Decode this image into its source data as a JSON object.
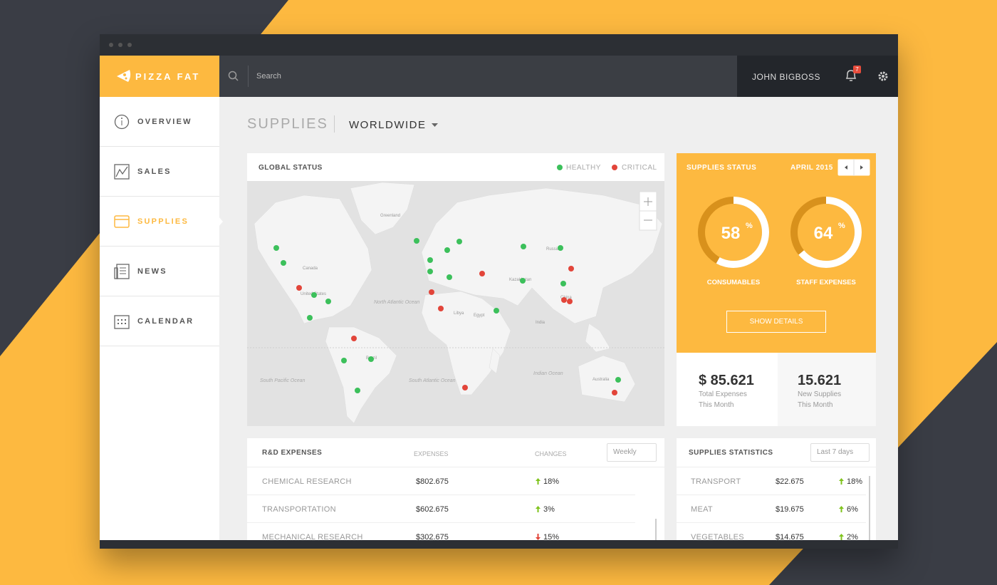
{
  "brand": "PIZZA FAT",
  "search_placeholder": "Search",
  "user": "JOHN BIGBOSS",
  "notifications": 7,
  "nav": [
    "OVERVIEW",
    "SALES",
    "SUPPLIES",
    "NEWS",
    "CALENDAR"
  ],
  "page": {
    "title": "SUPPLIES",
    "region": "WORLDWIDE"
  },
  "global_status": {
    "title": "GLOBAL STATUS",
    "legend": [
      "HEALTHY",
      "CRITICAL"
    ],
    "map_labels": [
      "Greenland",
      "Canada",
      "United States",
      "North Atlantic Ocean",
      "South Pacific Ocean",
      "South Atlantic Ocean",
      "Indian Ocean",
      "Brazil",
      "Russia",
      "Kazakhstan",
      "China",
      "India",
      "Australia",
      "Libya",
      "Egypt"
    ]
  },
  "supplies_status": {
    "title": "SUPPLIES STATUS",
    "period": "APRIL 2015",
    "donuts": [
      {
        "value": 58,
        "unit": "%",
        "label": "CONSUMABLES"
      },
      {
        "value": 64,
        "unit": "%",
        "label": "STAFF EXPENSES"
      }
    ],
    "button": "SHOW DETAILS",
    "totals": [
      {
        "value": "$ 85.621",
        "label": "Total Expenses",
        "sub": "This Month"
      },
      {
        "value": "15.621",
        "label": "New Supplies",
        "sub": "This Month"
      }
    ]
  },
  "rd_expenses": {
    "title": "R&D EXPENSES",
    "columns": [
      "EXPENSES",
      "CHANGES"
    ],
    "filter": "Weekly",
    "rows": [
      {
        "name": "CHEMICAL RESEARCH",
        "amount": "$802.675",
        "change": "18%",
        "trend": "up"
      },
      {
        "name": "TRANSPORTATION",
        "amount": "$602.675",
        "change": "3%",
        "trend": "up"
      },
      {
        "name": "MECHANICAL RESEARCH",
        "amount": "$302.675",
        "change": "15%",
        "trend": "down"
      }
    ]
  },
  "supplies_statistics": {
    "title": "SUPPLIES STATISTICS",
    "filter": "Last 7 days",
    "rows": [
      {
        "name": "TRANSPORT",
        "amount": "$22.675",
        "change": "18%",
        "trend": "up"
      },
      {
        "name": "MEAT",
        "amount": "$19.675",
        "change": "6%",
        "trend": "up"
      },
      {
        "name": "VEGETABLES",
        "amount": "$14.675",
        "change": "2%",
        "trend": "up"
      }
    ]
  }
}
